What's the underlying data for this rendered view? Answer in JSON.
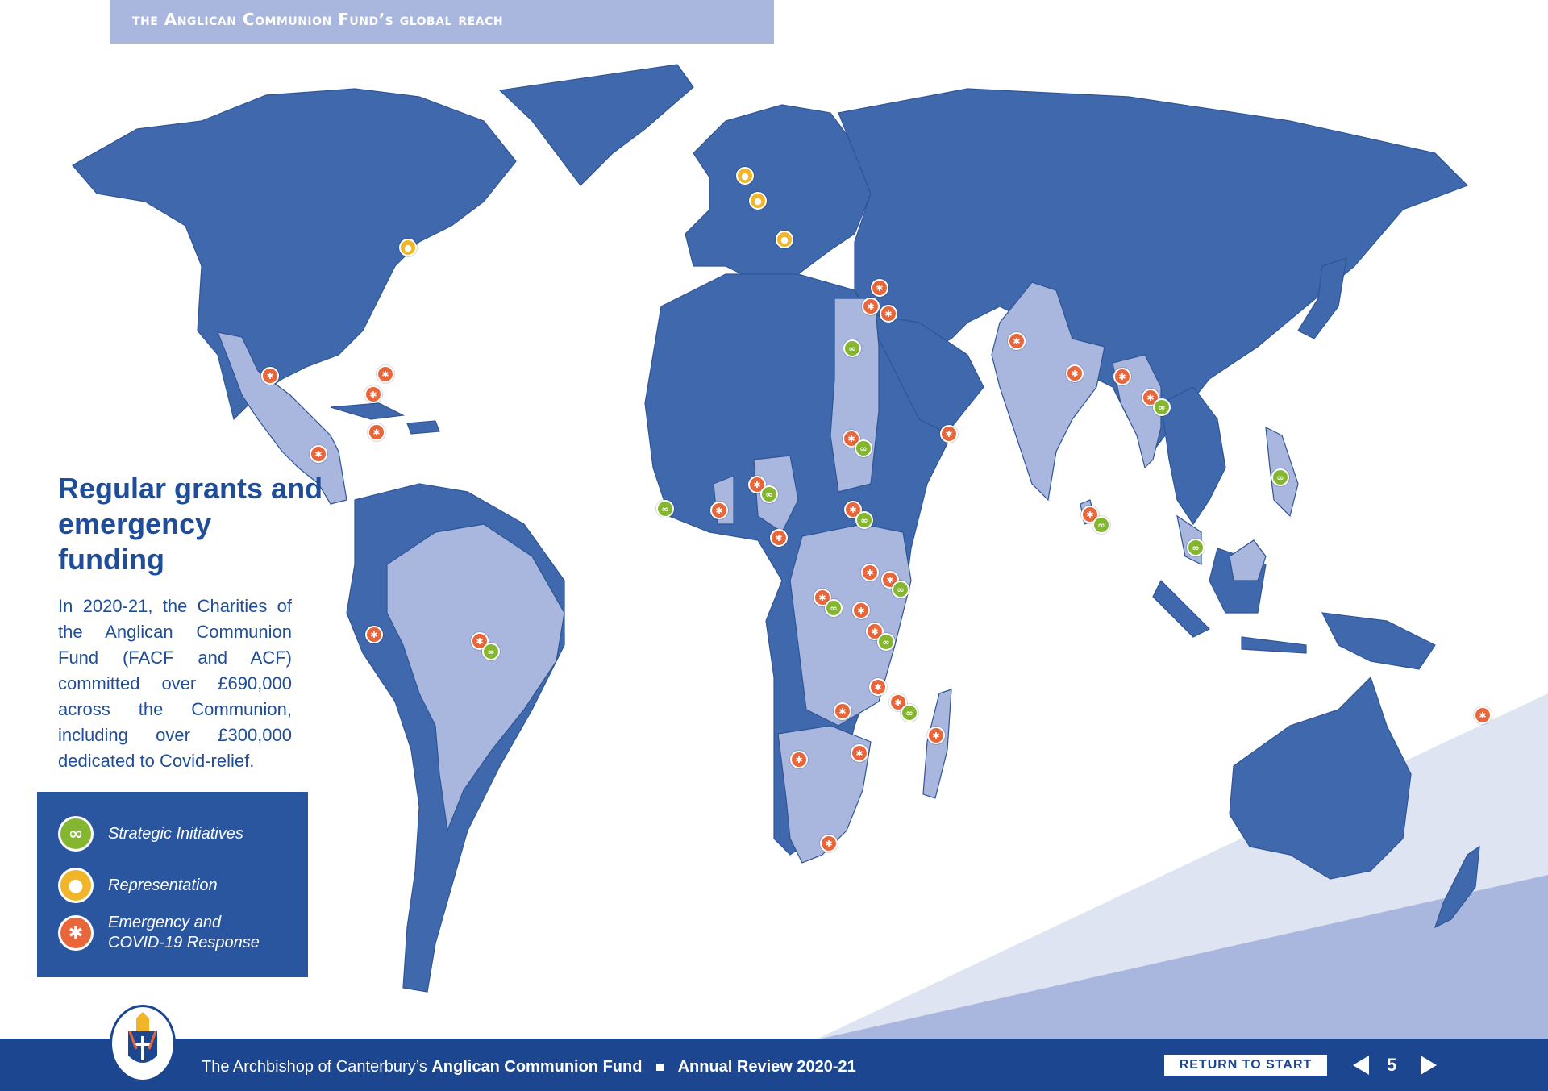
{
  "header": {
    "title": "the Anglican Communion Fund’s global reach"
  },
  "panel": {
    "heading": "Regular grants and emergency funding",
    "body": "In 2020-21, the Charities of the Anglican Communion Fund (FACF and ACF) committed over £690,000 across the Communion, including over £300,000 dedicated to Covid-relief."
  },
  "legend": {
    "items": [
      {
        "label": "Strategic Initiatives",
        "icon": "chain-link-icon",
        "color": "#84b72f"
      },
      {
        "label": "Representation",
        "icon": "person-icon",
        "color": "#f1b52a"
      },
      {
        "label": "Emergency and COVID-19 Response",
        "icon": "star-icon",
        "color": "#e9663a"
      }
    ]
  },
  "colors": {
    "land_dark": "#3f68ad",
    "land_highlight": "#a9b6de",
    "footer": "#1c468f"
  },
  "footer": {
    "prefix": "The Archbishop of Canterbury’s",
    "fund_name": "Anglican Communion Fund",
    "review": "Annual Review 2020-21",
    "return_label": "RETURN TO START",
    "page_number": "5"
  }
}
